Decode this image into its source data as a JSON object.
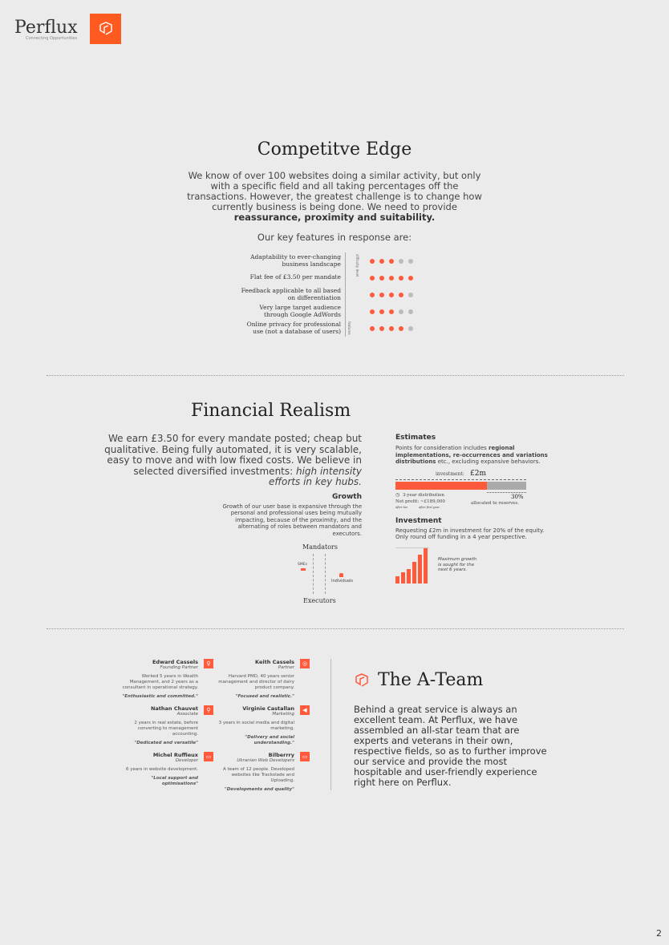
{
  "header": {
    "brand": "Perflux",
    "tagline": "Connecting Opportunities"
  },
  "edge": {
    "title": "Competitve Edge",
    "intro": "We know of over 100 websites doing a similar activity, but only with a specific field and all taking percentages off the transactions. However, the greatest challenge is to change how currently business is being done. We need to provide",
    "intro_bold": "reassurance, proximity and suitability.",
    "subtitle": "Our key features in response are:",
    "axis_top": "difficulty level",
    "axis_bottom": "features",
    "features": [
      {
        "label": "Adaptability to ever-changing business landscape",
        "level": 3,
        "max": 5
      },
      {
        "label": "Flat fee of £3.50 per mandate",
        "level": 5,
        "max": 5
      },
      {
        "label": "Feedback applicable to all based on differentiation",
        "level": 4,
        "max": 5
      },
      {
        "label": "Very large target audience through Google AdWords",
        "level": 3,
        "max": 5
      },
      {
        "label": "Online privacy for professional use (not a database of users)",
        "level": 4,
        "max": 5
      }
    ]
  },
  "finance": {
    "title": "Financial Realism",
    "intro": "We earn £3.50 for every mandate posted; cheap but qualitative. Being fully automated, it is very scalable, easy to move and with low fixed costs. We believe in selected diversified investments: ",
    "intro_em": "high intensity efforts in key hubs.",
    "growth_title": "Growth",
    "growth_text": "Growth of our user base is expansive through the personal and professional uses being mutually impacting, because of the proximity, and the alternating of roles between mandators and executors.",
    "mandators": "Mandators",
    "executors": "Executors",
    "smes": "SMEs",
    "individuals": "Individuals",
    "estimates_title": "Estimates",
    "estimates_pre": "Points for consideration includes ",
    "estimates_bold": "regional implementations, re-occurrences and variations distributions",
    "estimates_post": " etc., excluding expansive behaviors.",
    "investment_label": "investment:",
    "investment_value": "£2m",
    "allocation_pct": 70,
    "distribution": "3-year distribution",
    "net_profit": "Net profit: ~£189,000",
    "after_tax": "after tax",
    "after_first": "after first year.",
    "reserve_pct": "30%",
    "reserve_label": "allocated to reserves.",
    "invest_title": "Investment",
    "invest_text": "Requesting £2m in investment for 20% of the equity. Only round off funding in a 4 year perspective.",
    "growth_bars": [
      2,
      3,
      4,
      6,
      8,
      10
    ],
    "growth_note": "Maximum growth is sought for the next 6 years."
  },
  "team": {
    "title": "The A-Team",
    "text": "Behind a great service is always an excellent team. At Perflux, we have assembled an all-star team that are experts and veterans in their own, respective fields, so as to further improve our service and provide the most hospitable and user-friendly experience right here on Perflux.",
    "members": [
      {
        "name": "Edward Cassels",
        "role": "Founding Partner",
        "desc": "Worked 5 years in Wealth Management, and 2 years as a consultant in operational strategy.",
        "quote": "\"Enthusiastic and committed.\"",
        "icon": "lightbulb-icon"
      },
      {
        "name": "Keith Cassels",
        "role": "Partner",
        "desc": "Harvard PMD, 40 years senior management and director of dairy product company.",
        "quote": "\"Focused and realistic.\"",
        "icon": "lifebuoy-icon"
      },
      {
        "name": "Nathan Chauvet",
        "role": "Associate",
        "desc": "2 years in real estate, before converting to management accounting.",
        "quote": "\"Dedicated and versatile\"",
        "icon": "search-icon"
      },
      {
        "name": "Virginie Castallan",
        "role": "Marketing",
        "desc": "3 years in social media and digital marketing.",
        "quote": "\"Delivery and social understanding.\"",
        "icon": "megaphone-icon"
      },
      {
        "name": "Michel Ruffieux",
        "role": "Developer",
        "desc": "6 years in website development.",
        "quote": "\"Local support and optimisations\"",
        "icon": "keyboard-icon"
      },
      {
        "name": "Bilberrry",
        "role": "Ukranian Web Developers",
        "desc": "A team of 12 people. Developed websites like Trackolade and Uploading.",
        "quote": "\"Developments and quality\"",
        "icon": "keyboard-icon"
      }
    ]
  },
  "page_number": "2",
  "colors": {
    "accent": "#ff5a3c",
    "background": "#ebebeb"
  }
}
